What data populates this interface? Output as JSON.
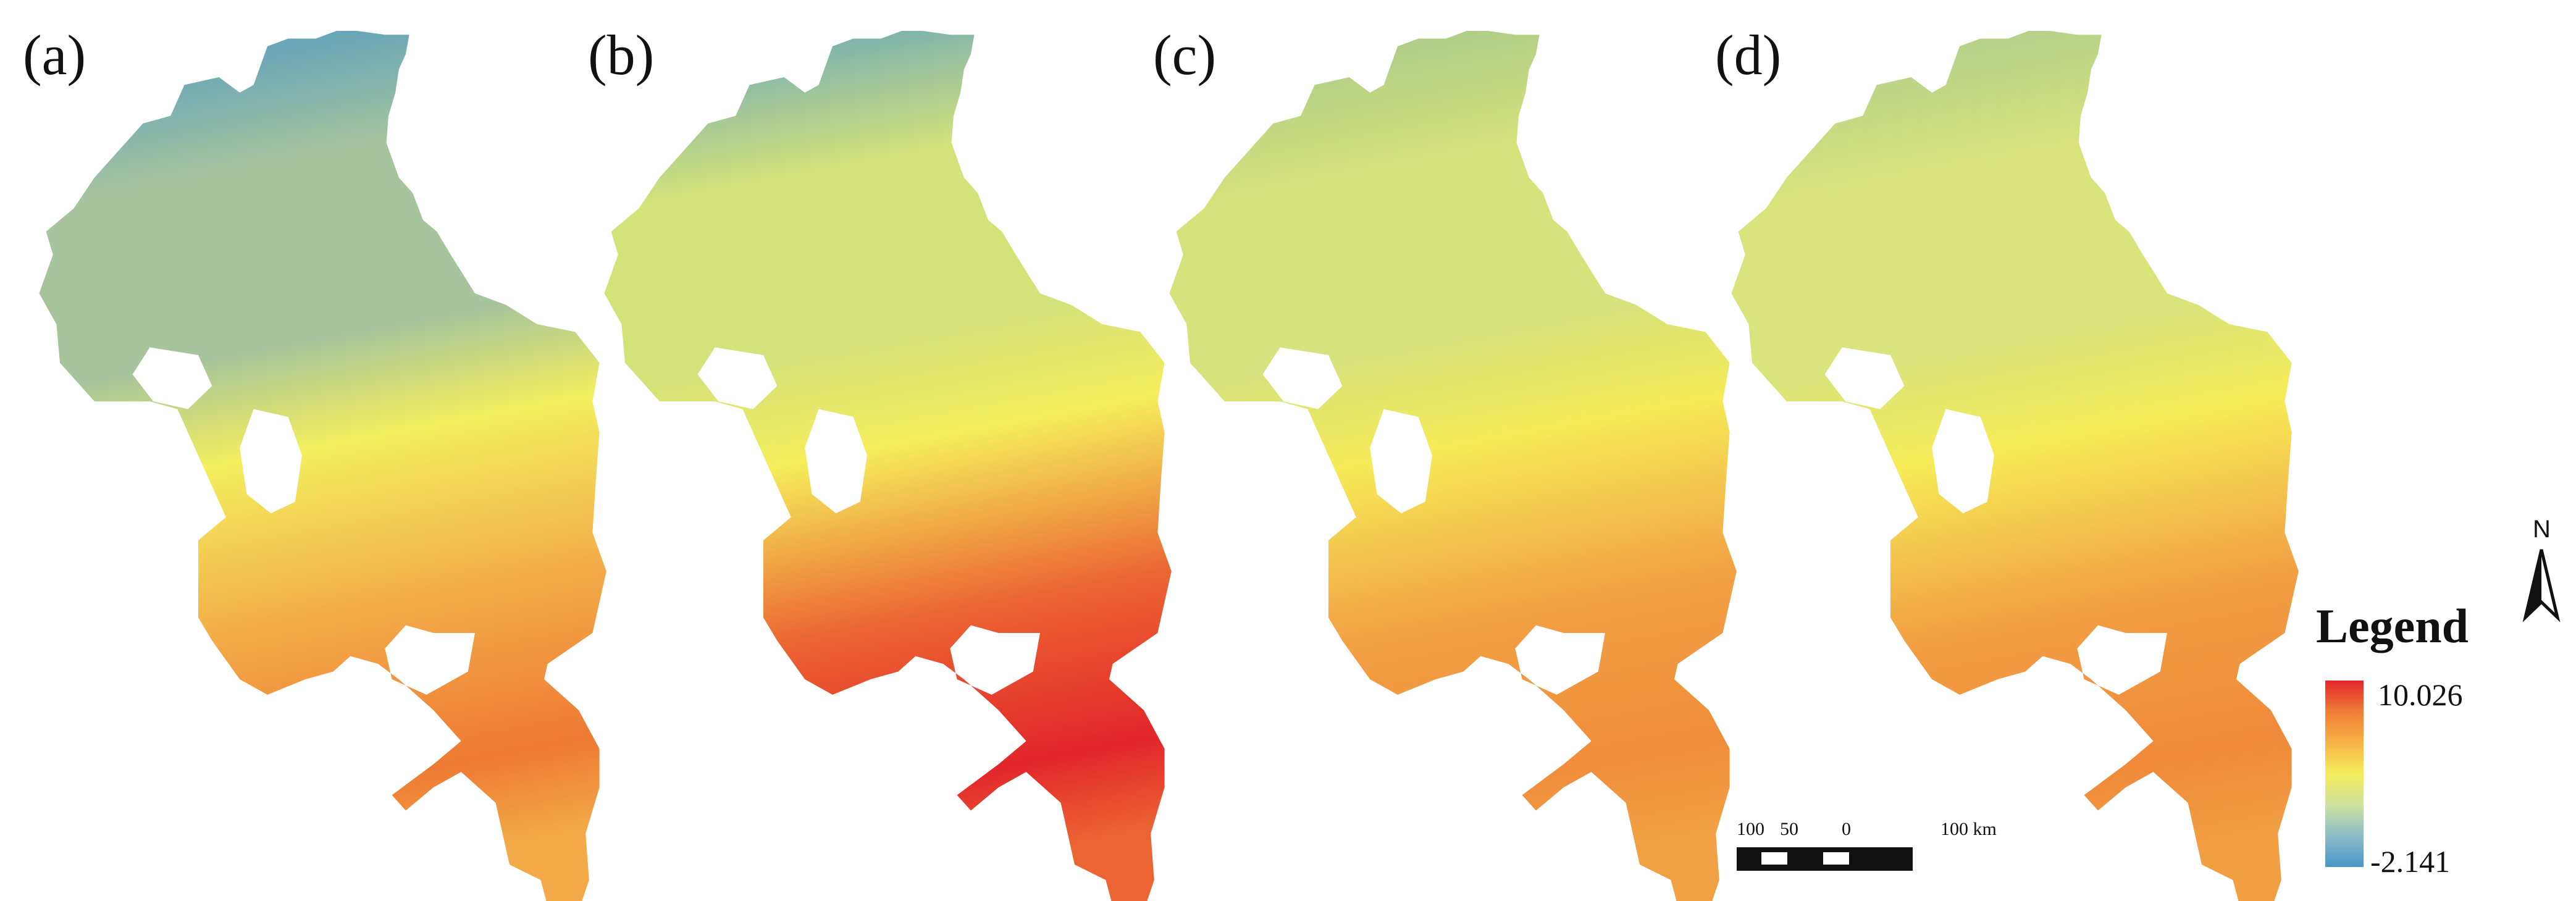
{
  "panels": [
    {
      "label": "(a)",
      "top_color": "#4a97c8",
      "mid_north": "#a7c59c",
      "mid_band": "#f3ef5e",
      "south": "#f3a948",
      "tip": "#ee7a34"
    },
    {
      "label": "(b)",
      "top_color": "#5aa0c4",
      "mid_north": "#d4e27a",
      "mid_band": "#f5ee5b",
      "south": "#ec6432",
      "tip": "#e2252a"
    },
    {
      "label": "(c)",
      "top_color": "#9fc48e",
      "mid_north": "#d6e27b",
      "mid_band": "#f6eb57",
      "south": "#f2a044",
      "tip": "#f08d3b"
    },
    {
      "label": "(d)",
      "top_color": "#a6c891",
      "mid_north": "#d9e47c",
      "mid_band": "#f6ec57",
      "south": "#f29e43",
      "tip": "#ef8a3a"
    }
  ],
  "legend": {
    "title": "Legend",
    "max": "10.026",
    "min": "-2.141",
    "colors": [
      "#e3262a",
      "#f07d38",
      "#f6b245",
      "#f5ee5b",
      "#cfe2a0",
      "#8bbcc7",
      "#4a97c8"
    ]
  },
  "scale_bar": {
    "labels": [
      "100",
      "50",
      "0",
      "100 km"
    ]
  },
  "north_arrow": {
    "letter": "N"
  }
}
